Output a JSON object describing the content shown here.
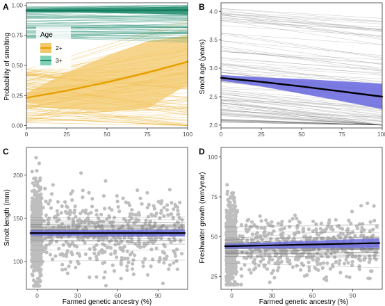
{
  "colors": {
    "age2": "#E69F00",
    "age3": "#1B8A6B",
    "age3_light": "#7FD1B6",
    "age2_light": "#F3C86A",
    "smolt_blue": "#6E6EE0",
    "points_grey": "#BEBEBE",
    "line_black": "#000000",
    "panel_border": "#333333"
  },
  "chart_data": [
    {
      "id": "A",
      "type": "line",
      "panel_label": "A",
      "xlabel": "",
      "ylabel": "Probability of smolting",
      "xlim": [
        0,
        100
      ],
      "ylim": [
        -0.02,
        1.02
      ],
      "xticks": [
        0,
        25,
        50,
        75,
        100
      ],
      "yticks": [
        0.0,
        0.25,
        0.5,
        0.75,
        1.0
      ],
      "ytick_labels": [
        "0.00",
        "0.25",
        "0.50",
        "0.75",
        "1.00"
      ],
      "legend": {
        "title": "Age",
        "position": "top-left",
        "entries": [
          "2+",
          "3+"
        ]
      },
      "series": [
        {
          "name": "2+",
          "x": [
            0,
            25,
            50,
            75,
            100
          ],
          "values": [
            0.23,
            0.29,
            0.36,
            0.44,
            0.53
          ],
          "band_lower": [
            0.19,
            0.14,
            0.12,
            0.14,
            0.34
          ],
          "band_upper": [
            0.27,
            0.44,
            0.58,
            0.7,
            0.75
          ]
        },
        {
          "name": "3+",
          "x": [
            0,
            25,
            50,
            75,
            100
          ],
          "values": [
            0.955,
            0.956,
            0.957,
            0.958,
            0.96
          ],
          "band_lower": [
            0.94,
            0.94,
            0.935,
            0.93,
            0.92
          ],
          "band_upper": [
            0.97,
            0.975,
            0.98,
            0.985,
            0.99
          ]
        }
      ]
    },
    {
      "id": "B",
      "type": "line",
      "panel_label": "B",
      "xlabel": "",
      "ylabel": "Smolt age (years)",
      "xlim": [
        0,
        100
      ],
      "ylim": [
        1.95,
        4.15
      ],
      "xticks": [
        0,
        25,
        50,
        75,
        100
      ],
      "yticks": [
        2.0,
        2.5,
        3.0,
        3.5,
        4.0
      ],
      "ytick_labels": [
        "2.0",
        "2.5",
        "3.0",
        "3.5",
        "4.0"
      ],
      "series": [
        {
          "name": "",
          "x": [
            0,
            25,
            50,
            75,
            100
          ],
          "values": [
            2.83,
            2.76,
            2.68,
            2.59,
            2.5
          ],
          "band_lower": [
            2.78,
            2.68,
            2.55,
            2.42,
            2.28
          ],
          "band_upper": [
            2.88,
            2.84,
            2.81,
            2.77,
            2.73
          ]
        }
      ]
    },
    {
      "id": "C",
      "type": "scatter",
      "panel_label": "C",
      "xlabel": "Farmed genetic ancestry (%)",
      "ylabel": "Smolt length (mm)",
      "xlim": [
        -8,
        112
      ],
      "ylim": [
        68,
        232
      ],
      "xticks": [
        0,
        30,
        60,
        90
      ],
      "yticks": [
        100,
        150,
        200
      ],
      "ytick_labels": [
        "100",
        "150",
        "200"
      ],
      "series": [
        {
          "name": "",
          "x": [
            -5,
            110
          ],
          "values": [
            133,
            133
          ],
          "band_lower": [
            130,
            129
          ],
          "band_upper": [
            136,
            137
          ]
        }
      ]
    },
    {
      "id": "D",
      "type": "scatter",
      "panel_label": "D",
      "xlabel": "Farmed genetic ancestry (%)",
      "ylabel": "Freshwater growth (mm/year)",
      "xlim": [
        -8,
        112
      ],
      "ylim": [
        17,
        106
      ],
      "xticks": [
        0,
        30,
        60,
        90
      ],
      "yticks": [
        25,
        50,
        75,
        100
      ],
      "ytick_labels": [
        "25",
        "50",
        "75",
        "100"
      ],
      "series": [
        {
          "name": "",
          "x": [
            -5,
            110
          ],
          "values": [
            44,
            46
          ],
          "band_lower": [
            42.5,
            43
          ],
          "band_upper": [
            45.5,
            49
          ]
        }
      ]
    }
  ]
}
